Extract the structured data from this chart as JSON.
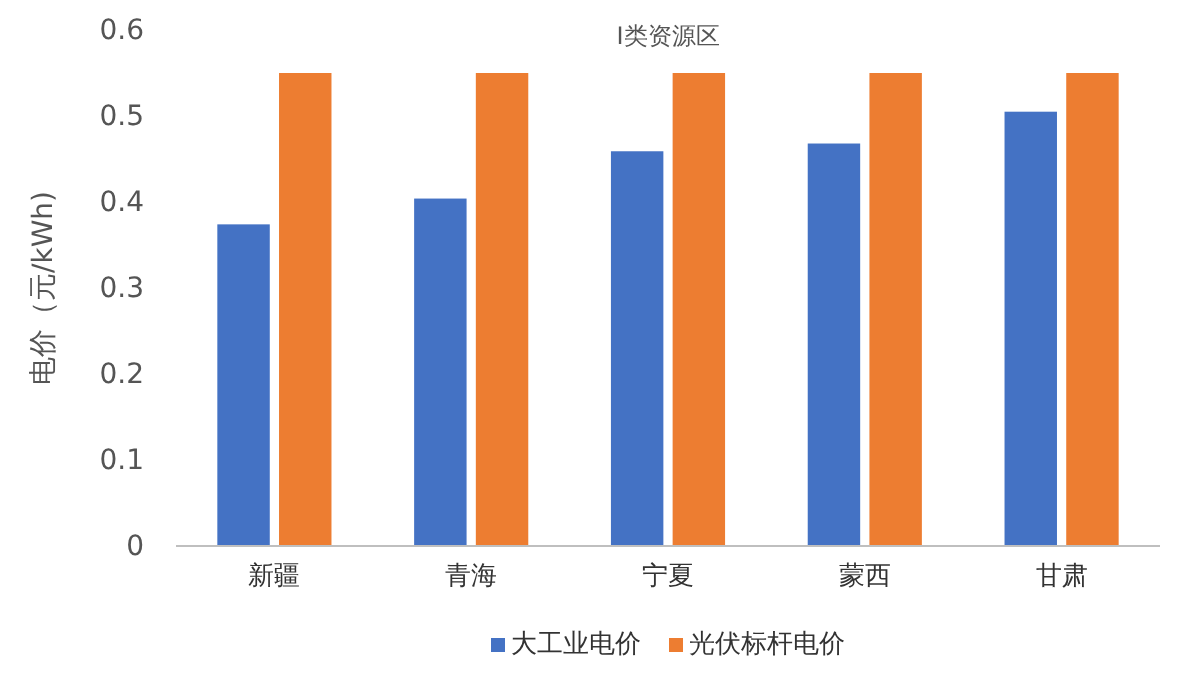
{
  "chart_data": {
    "type": "bar",
    "title": "Ⅰ类资源区",
    "ylabel": "电价（元/kWh)",
    "categories": [
      "新疆",
      "青海",
      "宁夏",
      "蒙西",
      "甘肃"
    ],
    "series": [
      {
        "name": "大工业电价",
        "color": "#4472c4",
        "values": [
          0.374,
          0.404,
          0.459,
          0.468,
          0.505
        ]
      },
      {
        "name": "光伏标杆电价",
        "color": "#ed7d31",
        "values": [
          0.55,
          0.55,
          0.55,
          0.55,
          0.55
        ]
      }
    ],
    "ylim": [
      0,
      0.6
    ],
    "yticks": [
      0,
      0.1,
      0.2,
      0.3,
      0.4,
      0.5,
      0.6
    ],
    "grid": false,
    "legend": "bottom"
  }
}
